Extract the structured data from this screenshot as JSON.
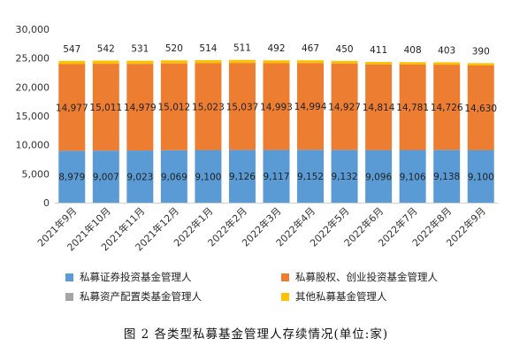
{
  "caption": "图 2 各类型私募基金管理人存续情况(单位:家)",
  "chart_data": {
    "type": "bar",
    "stacked": true,
    "categories": [
      "2021年9月",
      "2021年10月",
      "2021年11月",
      "2021年12月",
      "2022年1月",
      "2022年2月",
      "2022年3月",
      "2022年4月",
      "2022年5月",
      "2022年6月",
      "2022年7月",
      "2022年8月",
      "2022年9月"
    ],
    "ylim": [
      0,
      30000
    ],
    "yticks": [
      0,
      5000,
      10000,
      15000,
      20000,
      25000,
      30000
    ],
    "ytick_labels": [
      "0",
      "5,000",
      "10,000",
      "15,000",
      "20,000",
      "25,000",
      "30,000"
    ],
    "grid": false,
    "legend_position": "bottom",
    "series": [
      {
        "name": "私募证券投资基金管理人",
        "color": "#5b9bd5",
        "values": [
          8979,
          9007,
          9023,
          9069,
          9100,
          9126,
          9117,
          9152,
          9132,
          9096,
          9106,
          9138,
          9100
        ],
        "labels": [
          "8,979",
          "9,007",
          "9,023",
          "9,069",
          "9,100",
          "9,126",
          "9,117",
          "9,152",
          "9,132",
          "9,096",
          "9,106",
          "9,138",
          "9,100"
        ]
      },
      {
        "name": "私募股权、创业投资基金管理人",
        "color": "#ed7d31",
        "values": [
          14977,
          15011,
          14979,
          15012,
          15023,
          15037,
          14993,
          14994,
          14927,
          14814,
          14781,
          14726,
          14630
        ],
        "labels": [
          "14,977",
          "15,011",
          "14,979",
          "15,012",
          "15,023",
          "15,037",
          "14,993",
          "14,994",
          "14,927",
          "14,814",
          "14,781",
          "14,726",
          "14,630"
        ]
      },
      {
        "name": "私募资产配置类基金管理人",
        "color": "#a5a5a5",
        "values": [
          9,
          9,
          9,
          9,
          9,
          9,
          9,
          9,
          9,
          9,
          9,
          9,
          9
        ],
        "labels": []
      },
      {
        "name": "其他私募基金管理人",
        "color": "#ffc000",
        "values": [
          547,
          542,
          531,
          520,
          514,
          511,
          492,
          467,
          450,
          411,
          408,
          403,
          390
        ],
        "labels": [
          "547",
          "542",
          "531",
          "520",
          "514",
          "511",
          "492",
          "467",
          "450",
          "411",
          "408",
          "403",
          "390"
        ]
      }
    ]
  }
}
